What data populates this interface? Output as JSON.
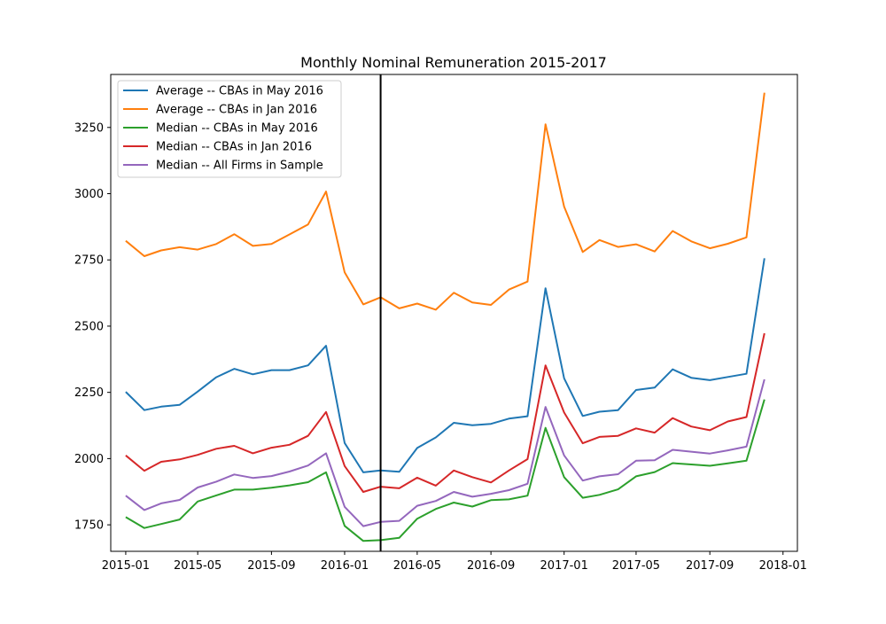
{
  "chart_data": {
    "type": "line",
    "title": "Monthly Nominal Remuneration 2015-2017",
    "xlabel": "",
    "ylabel": "",
    "x": [
      "2015-01",
      "2015-02",
      "2015-03",
      "2015-04",
      "2015-05",
      "2015-06",
      "2015-07",
      "2015-08",
      "2015-09",
      "2015-10",
      "2015-11",
      "2015-12",
      "2016-01",
      "2016-02",
      "2016-03",
      "2016-04",
      "2016-05",
      "2016-06",
      "2016-07",
      "2016-08",
      "2016-09",
      "2016-10",
      "2016-11",
      "2016-12",
      "2017-01",
      "2017-02",
      "2017-03",
      "2017-04",
      "2017-05",
      "2017-06",
      "2017-07",
      "2017-08",
      "2017-09",
      "2017-10",
      "2017-11",
      "2017-12"
    ],
    "xlim": [
      "2014-12-07",
      "2018-01-25"
    ],
    "ylim": [
      1650,
      3450
    ],
    "x_ticks": [
      {
        "date": "2015-01-01",
        "label": "2015-01"
      },
      {
        "date": "2015-05-01",
        "label": "2015-05"
      },
      {
        "date": "2015-09-01",
        "label": "2015-09"
      },
      {
        "date": "2016-01-01",
        "label": "2016-01"
      },
      {
        "date": "2016-05-01",
        "label": "2016-05"
      },
      {
        "date": "2016-09-01",
        "label": "2016-09"
      },
      {
        "date": "2017-01-01",
        "label": "2017-01"
      },
      {
        "date": "2017-05-01",
        "label": "2017-05"
      },
      {
        "date": "2017-09-01",
        "label": "2017-09"
      },
      {
        "date": "2018-01-01",
        "label": "2018-01"
      }
    ],
    "y_ticks": [
      1750,
      2000,
      2250,
      2500,
      2750,
      3000,
      3250
    ],
    "vline": "2016-03",
    "grid": false,
    "legend_position": "top-left",
    "series": [
      {
        "name": "Average -- CBAs in May 2016",
        "color": "#1f77b4",
        "values": [
          2252,
          2183,
          2196,
          2203,
          2253,
          2307,
          2339,
          2318,
          2334,
          2334,
          2352,
          2426,
          2059,
          1948,
          1955,
          1950,
          2040,
          2080,
          2135,
          2126,
          2131,
          2151,
          2160,
          2643,
          2303,
          2161,
          2177,
          2183,
          2259,
          2268,
          2337,
          2305,
          2296,
          2308,
          2320,
          2756
        ]
      },
      {
        "name": "Average -- CBAs in Jan 2016",
        "color": "#ff7f0e",
        "values": [
          2822,
          2764,
          2786,
          2798,
          2789,
          2810,
          2847,
          2803,
          2810,
          2846,
          2884,
          3008,
          2703,
          2582,
          2609,
          2567,
          2585,
          2562,
          2626,
          2589,
          2580,
          2638,
          2668,
          3262,
          2951,
          2780,
          2825,
          2799,
          2809,
          2782,
          2859,
          2820,
          2794,
          2811,
          2835,
          3381
        ]
      },
      {
        "name": "Median -- CBAs in May 2016",
        "color": "#2ca02c",
        "values": [
          1779,
          1738,
          1753,
          1770,
          1838,
          1861,
          1883,
          1883,
          1890,
          1899,
          1911,
          1948,
          1746,
          1689,
          1692,
          1701,
          1773,
          1810,
          1834,
          1819,
          1843,
          1846,
          1860,
          2116,
          1930,
          1852,
          1863,
          1884,
          1933,
          1949,
          1983,
          1978,
          1973,
          1982,
          1992,
          2223
        ]
      },
      {
        "name": "Median -- CBAs in Jan 2016",
        "color": "#d62728",
        "values": [
          2012,
          1954,
          1988,
          1997,
          2014,
          2037,
          2048,
          2020,
          2041,
          2052,
          2086,
          2176,
          1972,
          1874,
          1894,
          1888,
          1928,
          1898,
          1955,
          1930,
          1910,
          1955,
          1998,
          2352,
          2174,
          2058,
          2082,
          2086,
          2114,
          2098,
          2153,
          2121,
          2107,
          2140,
          2157,
          2473
        ]
      },
      {
        "name": "Median -- All Firms in Sample",
        "color": "#9467bd",
        "values": [
          1860,
          1806,
          1831,
          1844,
          1891,
          1913,
          1940,
          1927,
          1934,
          1951,
          1974,
          2020,
          1818,
          1745,
          1761,
          1765,
          1822,
          1840,
          1874,
          1856,
          1867,
          1881,
          1905,
          2195,
          2012,
          1917,
          1933,
          1941,
          1992,
          1994,
          2033,
          2026,
          2019,
          2031,
          2045,
          2299
        ]
      }
    ]
  }
}
